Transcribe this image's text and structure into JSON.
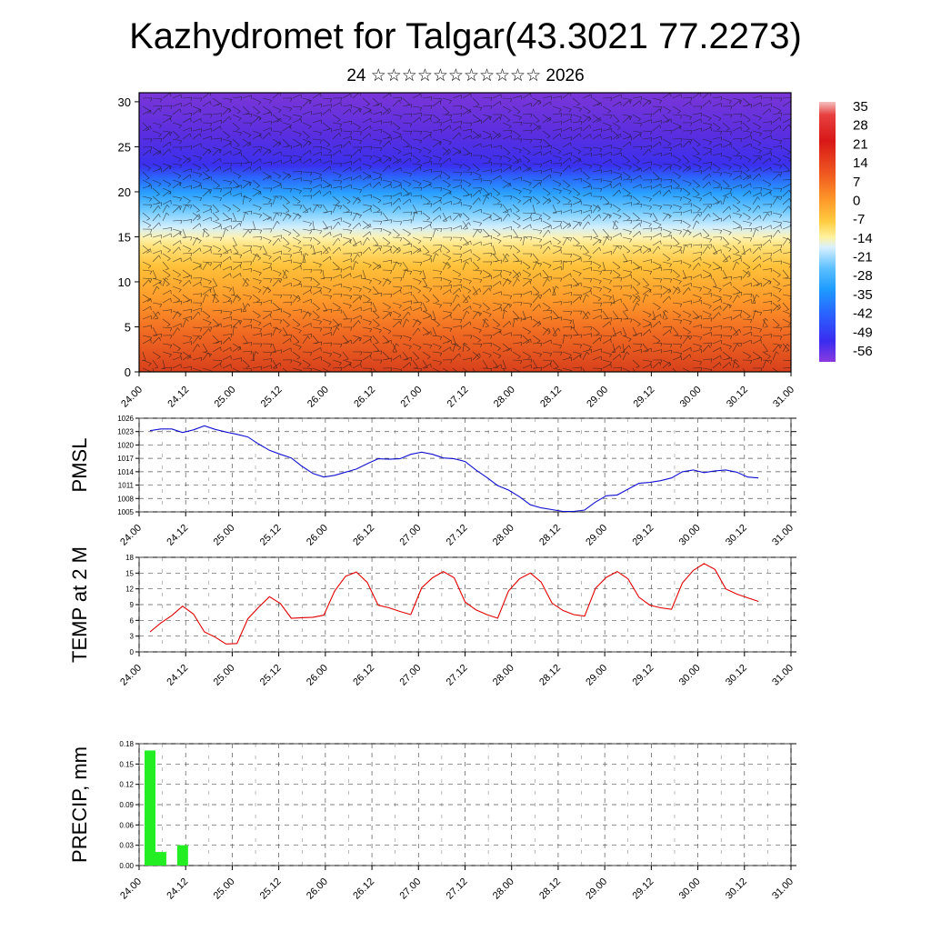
{
  "title": "Kazhydromet for Talgar(43.3021 77.2273)",
  "subtitle": "24 ☆☆☆☆☆☆☆☆☆☆☆ 2026",
  "time_ticks": [
    "24.00",
    "24.12",
    "25.00",
    "25.12",
    "26.00",
    "26.12",
    "27.00",
    "27.12",
    "28.00",
    "28.12",
    "29.00",
    "29.12",
    "30.00",
    "30.12",
    "31.00"
  ],
  "chart_data": [
    {
      "type": "heatmap",
      "name": "wind-temperature-cross-section",
      "ylim": [
        0,
        31
      ],
      "yticks": [
        0,
        5,
        10,
        15,
        20,
        25,
        30
      ],
      "colorbar_labels": [
        35,
        28,
        21,
        14,
        7,
        0,
        -7,
        -14,
        -21,
        -28,
        -35,
        -42,
        -49,
        -56
      ],
      "colors": {
        "hot": "#e03a1a",
        "warm": "#ff9a2a",
        "mild": "#ffd84a",
        "cool": "#bfe6ff",
        "cold": "#2aa8ff",
        "colder": "#4050ff",
        "coldest": "#6a2ad8"
      }
    },
    {
      "type": "line",
      "name": "pmsl",
      "ylabel": "PMSL",
      "ylim": [
        1005,
        1026
      ],
      "yticks": [
        1005,
        1008,
        1011,
        1014,
        1017,
        1020,
        1023,
        1026
      ],
      "color": "#1010d0",
      "values": [
        1023.2,
        1023.6,
        1023.6,
        1022.8,
        1023.4,
        1024.3,
        1023.5,
        1022.9,
        1022.4,
        1021.8,
        1020.2,
        1018.8,
        1017.9,
        1017.1,
        1015.2,
        1013.6,
        1012.8,
        1013.2,
        1013.9,
        1014.6,
        1015.8,
        1016.9,
        1016.8,
        1016.9,
        1017.9,
        1018.4,
        1017.9,
        1017.1,
        1016.9,
        1016.3,
        1014.4,
        1012.7,
        1010.9,
        1009.9,
        1008.4,
        1006.6,
        1005.9,
        1005.5,
        1005.1,
        1005.1,
        1005.4,
        1007.2,
        1008.6,
        1008.8,
        1010.1,
        1011.4,
        1011.6,
        1012.0,
        1012.6,
        1014.0,
        1014.4,
        1013.8,
        1014.2,
        1014.4,
        1013.9,
        1012.8,
        1012.6
      ]
    },
    {
      "type": "line",
      "name": "temp-2m",
      "ylabel": "TEMP at 2 M",
      "ylim": [
        0,
        18
      ],
      "yticks": [
        0,
        3,
        6,
        9,
        12,
        15,
        18
      ],
      "color": "#e00000",
      "values": [
        3.8,
        5.5,
        6.9,
        8.7,
        7.2,
        3.8,
        2.8,
        1.5,
        1.6,
        6.3,
        8.5,
        10.5,
        9.2,
        6.4,
        6.5,
        6.6,
        7.0,
        11.6,
        14.4,
        15.2,
        13.2,
        8.9,
        8.4,
        7.7,
        7.1,
        12.2,
        14.1,
        15.3,
        14.1,
        9.5,
        8.0,
        7.1,
        6.4,
        11.6,
        13.9,
        15.0,
        13.3,
        9.3,
        7.9,
        7.1,
        6.8,
        12.1,
        14.2,
        15.3,
        13.9,
        10.4,
        8.9,
        8.4,
        8.1,
        13.1,
        15.5,
        16.8,
        15.7,
        12.0,
        11.0,
        10.3,
        9.6
      ]
    },
    {
      "type": "bar",
      "name": "precip",
      "ylabel": "PRECIP, mm",
      "ylim": [
        0,
        0.18
      ],
      "yticks": [
        0.0,
        0.03,
        0.06,
        0.09,
        0.12,
        0.15,
        0.18
      ],
      "color": "#22ee22",
      "values": [
        0.17,
        0.02,
        0,
        0.03,
        0,
        0,
        0,
        0,
        0,
        0,
        0,
        0,
        0,
        0,
        0,
        0,
        0,
        0,
        0,
        0,
        0,
        0,
        0,
        0,
        0,
        0,
        0,
        0,
        0,
        0,
        0,
        0,
        0,
        0,
        0,
        0,
        0,
        0,
        0,
        0,
        0,
        0,
        0,
        0,
        0,
        0,
        0,
        0,
        0,
        0,
        0,
        0,
        0,
        0,
        0,
        0,
        0
      ]
    }
  ]
}
